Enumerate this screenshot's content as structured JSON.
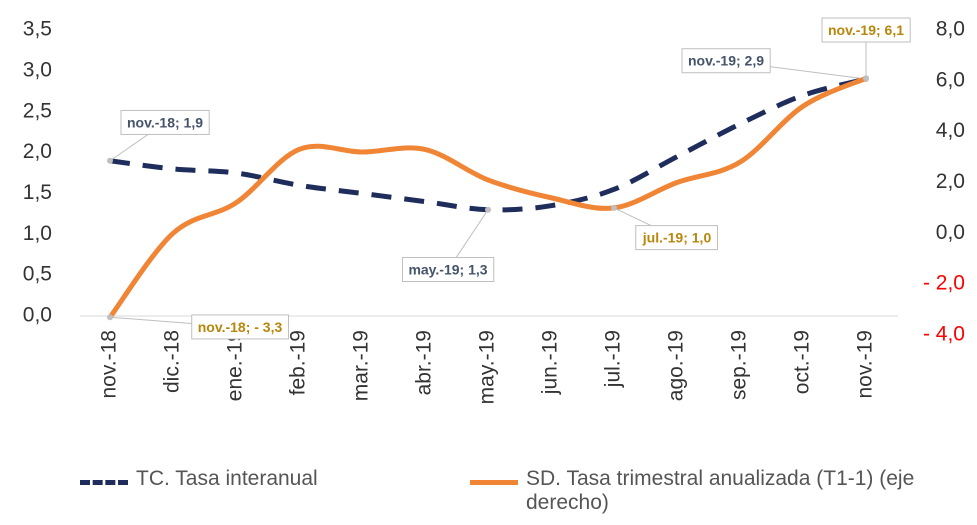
{
  "chart_data": {
    "type": "line",
    "categories": [
      "nov.-18",
      "dic.-18",
      "ene.-19",
      "feb.-19",
      "mar.-19",
      "abr.-19",
      "may.-19",
      "jun.-19",
      "jul.-19",
      "ago.-19",
      "sep.-19",
      "oct.-19",
      "nov.-19"
    ],
    "series": [
      {
        "name": "TC. Tasa interanual",
        "color": "#1f2d5c",
        "dashed": true,
        "values": [
          1.9,
          1.8,
          1.75,
          1.6,
          1.5,
          1.4,
          1.3,
          1.35,
          1.55,
          1.95,
          2.35,
          2.7,
          2.9
        ],
        "value_labels": [
          "nov.-18;  1,9",
          null,
          null,
          null,
          null,
          null,
          "may.-19;  1,3",
          null,
          null,
          null,
          null,
          null,
          "nov.-19;  2,9"
        ],
        "label_color": "#44546a"
      },
      {
        "name": "SD. Tasa trimestral anualizada (T1-1) (eje derecho)",
        "color": "#f08536",
        "axis": "y2",
        "values": [
          -3.3,
          0.0,
          1.2,
          3.3,
          3.2,
          3.3,
          2.1,
          1.4,
          1.0,
          2.0,
          2.8,
          5.0,
          6.1
        ],
        "value_labels": [
          "nov.-18; - 3,3",
          null,
          null,
          null,
          null,
          null,
          null,
          null,
          "jul.-19;  1,0",
          null,
          null,
          null,
          "nov.-19;  6,1"
        ],
        "label_color": "#b8860b"
      }
    ],
    "ylim": [
      0,
      3.5
    ],
    "yticks": [
      {
        "value": 0,
        "label": "0,0"
      },
      {
        "value": 0.5,
        "label": "0,5"
      },
      {
        "value": 1,
        "label": "1,0"
      },
      {
        "value": 1.5,
        "label": "1,5"
      },
      {
        "value": 2,
        "label": "2,0"
      },
      {
        "value": 2.5,
        "label": "2,5"
      },
      {
        "value": 3,
        "label": "3,0"
      },
      {
        "value": 3.5,
        "label": "3,5"
      }
    ],
    "y2lim": [
      -4,
      8
    ],
    "y2ticks": [
      {
        "value": -4,
        "label": "- 4,0"
      },
      {
        "value": -2,
        "label": "- 2,0"
      },
      {
        "value": 0,
        "label": "0,0"
      },
      {
        "value": 2,
        "label": "2,0"
      },
      {
        "value": 4,
        "label": "4,0"
      },
      {
        "value": 6,
        "label": "6,0"
      },
      {
        "value": 8,
        "label": "8,0"
      }
    ],
    "negative_tick_color": "#ff0000",
    "legend": "bottom"
  }
}
